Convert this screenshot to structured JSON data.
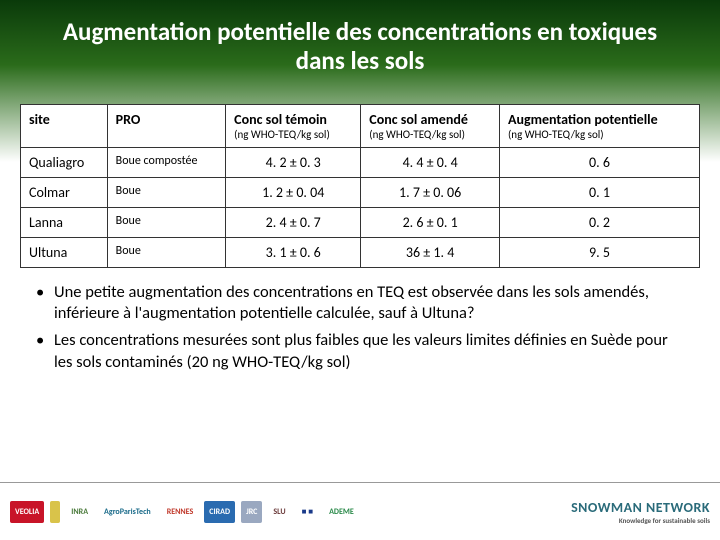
{
  "title": "Augmentation potentielle des concentrations en toxiques dans les sols",
  "table": {
    "headers": {
      "site": "site",
      "pro": "PRO",
      "temoin": "Conc sol témoin",
      "temoin_sub": "(ng WHO-TEQ/kg sol)",
      "amende": "Conc sol amendé",
      "amende_sub": "(ng WHO-TEQ/kg sol)",
      "aug": "Augmentation potentielle",
      "aug_sub": "(ng WHO-TEQ/kg sol)"
    },
    "rows": [
      {
        "site": "Qualiagro",
        "pro": "Boue compostée",
        "t": "4. 2 ± 0. 3",
        "a": "4. 4 ± 0. 4",
        "g": "0. 6"
      },
      {
        "site": "Colmar",
        "pro": "Boue",
        "t": "1. 2 ± 0. 04",
        "a": "1. 7 ± 0. 06",
        "g": "0. 1"
      },
      {
        "site": "Lanna",
        "pro": "Boue",
        "t": "2. 4 ± 0. 7",
        "a": "2. 6 ± 0. 1",
        "g": "0. 2"
      },
      {
        "site": "Ultuna",
        "pro": "Boue",
        "t": "3. 1 ± 0. 6",
        "a": "36 ± 1. 4",
        "g": "9. 5"
      }
    ]
  },
  "bullets": [
    "Une petite augmentation des concentrations en TEQ est observée dans les sols amendés, inférieure à l'augmentation potentielle calculée, sauf à Ultuna?",
    "Les concentrations mesurées sont plus faibles que les valeurs limites définies en Suède pour les sols contaminés (20 ng WHO-TEQ/kg sol)"
  ],
  "logos": [
    {
      "label": "VEOLIA",
      "bg": "#c81428",
      "fg": "#ffffff"
    },
    {
      "label": "",
      "bg": "#d9c34a",
      "fg": "#333333"
    },
    {
      "label": "INRA",
      "bg": "#ffffff",
      "fg": "#4a7a3a"
    },
    {
      "label": "AgroParisTech",
      "bg": "#ffffff",
      "fg": "#1a6b8a"
    },
    {
      "label": "RENNES",
      "bg": "#ffffff",
      "fg": "#c0392b"
    },
    {
      "label": "CIRAD",
      "bg": "#2a6bb0",
      "fg": "#ffffff"
    },
    {
      "label": "JRC",
      "bg": "#9aa8c0",
      "fg": "#ffffff"
    },
    {
      "label": "SLU",
      "bg": "#ffffff",
      "fg": "#6b3a3a"
    },
    {
      "label": "■ ■",
      "bg": "#ffffff",
      "fg": "#1a3a8a"
    },
    {
      "label": "ADEME",
      "bg": "#ffffff",
      "fg": "#2a8a4a"
    }
  ],
  "snowman": {
    "main": "SNOWMAN NETWORK",
    "sub": "Knowledge for sustainable soils"
  }
}
